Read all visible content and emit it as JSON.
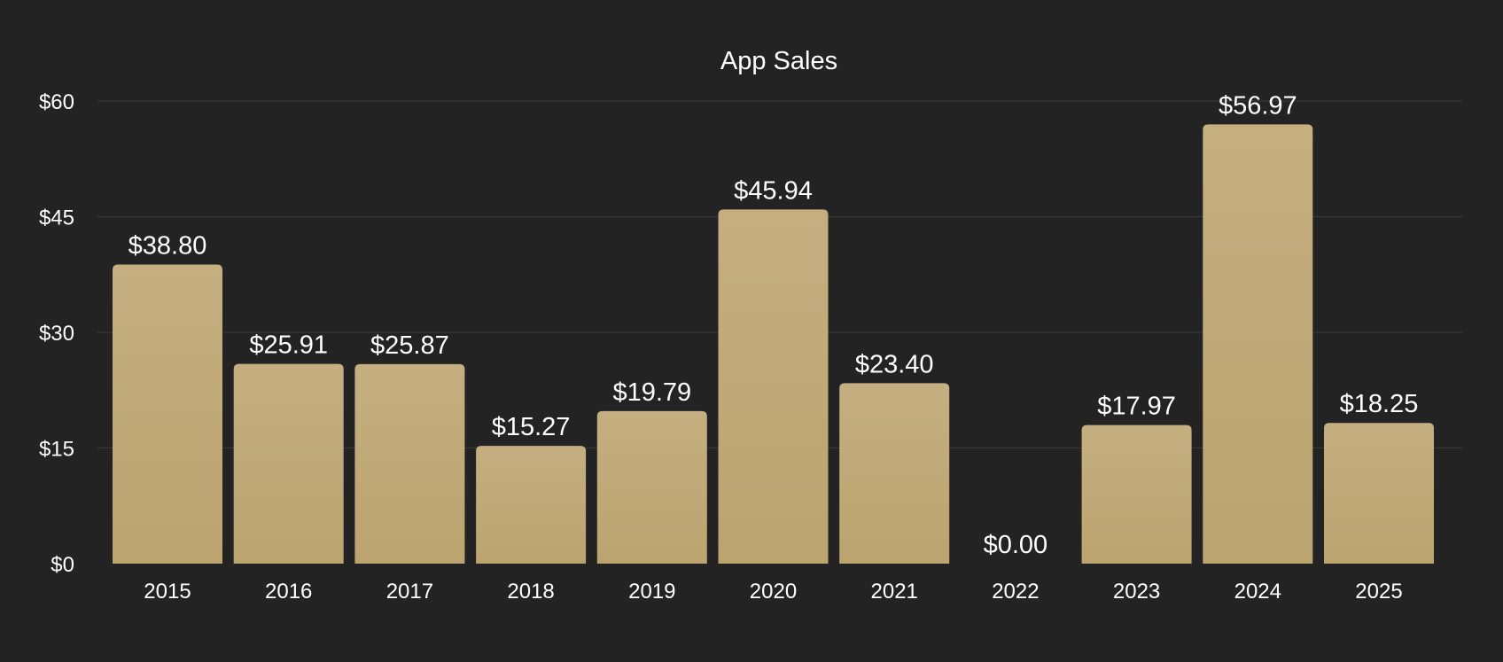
{
  "chart_data": {
    "type": "bar",
    "title": "App Sales",
    "xlabel": "",
    "ylabel": "",
    "categories": [
      "2015",
      "2016",
      "2017",
      "2018",
      "2019",
      "2020",
      "2021",
      "2022",
      "2023",
      "2024",
      "2025"
    ],
    "values": [
      38.8,
      25.91,
      25.87,
      15.27,
      19.79,
      45.94,
      23.4,
      0.0,
      17.97,
      56.97,
      18.25
    ],
    "value_labels": [
      "$38.80",
      "$25.91",
      "$25.87",
      "$15.27",
      "$19.79",
      "$45.94",
      "$23.40",
      "$0.00",
      "$17.97",
      "$56.97",
      "$18.25"
    ],
    "ylim": [
      0,
      60
    ],
    "yticks": [
      0,
      15,
      30,
      45,
      60
    ],
    "ytick_labels": [
      "$0",
      "$15",
      "$30",
      "$45",
      "$60"
    ],
    "grid": true,
    "legend": "none"
  },
  "colors": {
    "background": "#232323",
    "bar": "#bfa775",
    "grid": "#3a3a3a",
    "text": "#ffffff"
  }
}
